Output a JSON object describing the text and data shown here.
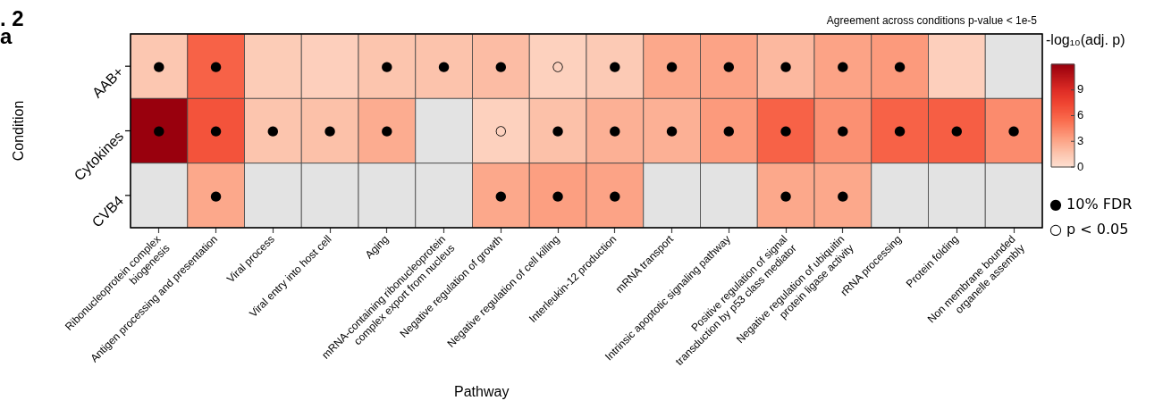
{
  "chart_data": {
    "type": "heatmap",
    "title": "Agreement across conditions p-value < 1e-5",
    "xlabel": "Pathway",
    "ylabel": "Condition",
    "clabel": "-log₁₀(adj. p)",
    "categories": [
      "Ribonucleoprotein complex\nbiogenesis",
      "Antigen processing and presentation",
      "Viral process",
      "Viral entry into host cell",
      "Aging",
      "mRNA-containing ribonucleoprotein\ncomplex export from nucleus",
      "Negative regulation of growth",
      "Negative regulation of cell killing",
      "Interleukin-12 production",
      "mRNA transport",
      "Intrinsic apoptotic signaling pathway",
      "Positive regulation of signal\ntransduction by p53 class mediator",
      "Negative regulation of ubiquitin\nprotein ligase activity",
      "rRNA processing",
      "Protein folding",
      "Non membrane bounded\norganelle assembly"
    ],
    "y_categories": [
      "AAB+",
      "Cytokines",
      "CVB4"
    ],
    "cells": [
      [
        1.5,
        6,
        1.2,
        1,
        1.6,
        1.7,
        2,
        0.9,
        1.3,
        3,
        3.2,
        2.2,
        3.2,
        3.6,
        1,
        null
      ],
      [
        12,
        6.8,
        1.6,
        1.8,
        2.8,
        null,
        0.9,
        1.8,
        2.6,
        2.6,
        3.6,
        6,
        4,
        6,
        6.2,
        4.2
      ],
      [
        null,
        3,
        null,
        null,
        null,
        null,
        3,
        3.4,
        3.2,
        null,
        null,
        3,
        3,
        null,
        null,
        null
      ]
    ],
    "cell_labels": [
      [
        "●",
        "●",
        null,
        null,
        "●",
        "●",
        "●",
        "○",
        "●",
        "●",
        "●",
        "●",
        "●",
        "●",
        null,
        null
      ],
      [
        "●",
        "●",
        "●",
        "●",
        "●",
        null,
        "○",
        "●",
        "●",
        "●",
        "●",
        "●",
        "●",
        "●",
        "●",
        "●"
      ],
      [
        null,
        "●",
        null,
        null,
        null,
        null,
        "●",
        "●",
        "●",
        null,
        null,
        "●",
        "●",
        null,
        null,
        null
      ]
    ],
    "clim": [
      0,
      12
    ],
    "cticks": [
      0,
      3,
      6,
      9
    ],
    "annotations": [
      ". 2",
      "a",
      "● 10% FDR",
      "○ p < 0.05"
    ]
  }
}
